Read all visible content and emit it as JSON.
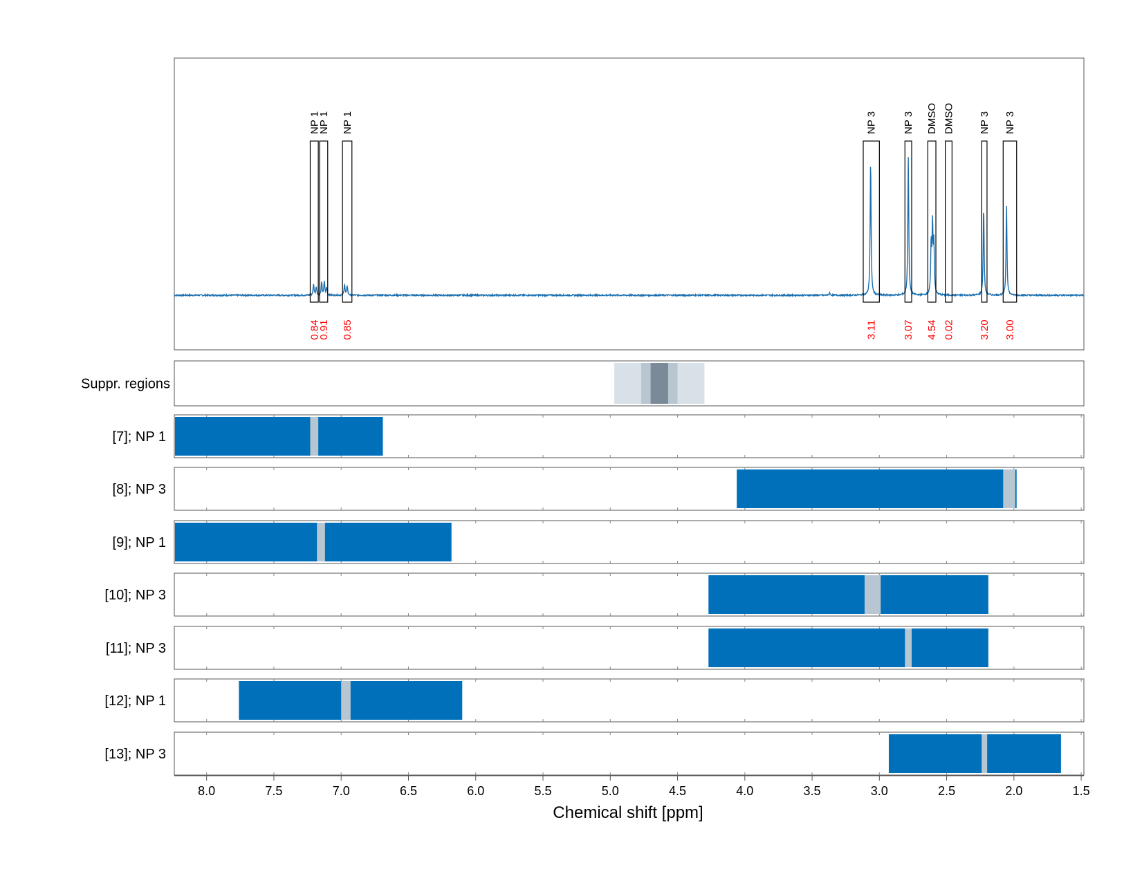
{
  "chart_data": {
    "type": "nmr-spectrum-with-region-bars",
    "xlabel": "Chemical shift [ppm]",
    "x_axis": {
      "reversed": true,
      "xlim": [
        8.24,
        1.48
      ],
      "ticks": [
        8.0,
        7.5,
        7.0,
        6.5,
        6.0,
        5.5,
        5.0,
        4.5,
        4.0,
        3.5,
        3.0,
        2.5,
        2.0,
        1.5
      ],
      "tick_labels": [
        "8.0",
        "7.5",
        "7.0",
        "6.5",
        "6.0",
        "5.5",
        "5.0",
        "4.5",
        "4.0",
        "3.5",
        "3.0",
        "2.5",
        "2.0",
        "1.5"
      ]
    },
    "grid": true,
    "colors": {
      "spectrum": "#1a6fb0",
      "bar": "#0070bb",
      "gap": "#b7c6d1",
      "integral_text": "#ff0000",
      "suppr_light": "#d8e1e8",
      "suppr_mid": "#b7c6d1",
      "suppr_dark": "#7a8a99"
    },
    "spectrum": {
      "baseline": 0,
      "ylim": [
        -0.04,
        0.18
      ],
      "peaks": [
        {
          "x": 7.205,
          "height": 0.009
        },
        {
          "x": 7.185,
          "height": 0.007
        },
        {
          "x": 7.145,
          "height": 0.01
        },
        {
          "x": 7.125,
          "height": 0.011
        },
        {
          "x": 7.108,
          "height": 0.006
        },
        {
          "x": 6.975,
          "height": 0.009
        },
        {
          "x": 6.955,
          "height": 0.008
        },
        {
          "x": 3.065,
          "height": 0.11
        },
        {
          "x": 2.785,
          "height": 0.112
        },
        {
          "x": 2.615,
          "height": 0.04
        },
        {
          "x": 2.605,
          "height": 0.055
        },
        {
          "x": 2.595,
          "height": 0.04
        },
        {
          "x": 2.225,
          "height": 0.072
        },
        {
          "x": 2.055,
          "height": 0.073
        },
        {
          "x": 3.37,
          "height": 0.002
        }
      ]
    },
    "peak_regions": [
      {
        "label": "NP 1",
        "integral": "0.84",
        "x_from": 7.23,
        "x_to": 7.17
      },
      {
        "label": "NP 1",
        "integral": "0.91",
        "x_from": 7.16,
        "x_to": 7.1
      },
      {
        "label": "NP 1",
        "integral": "0.85",
        "x_from": 6.99,
        "x_to": 6.92
      },
      {
        "label": "NP 3",
        "integral": "3.11",
        "x_from": 3.12,
        "x_to": 3.0
      },
      {
        "label": "NP 3",
        "integral": "3.07",
        "x_from": 2.81,
        "x_to": 2.76
      },
      {
        "label": "DMSO",
        "integral": "4.54",
        "x_from": 2.64,
        "x_to": 2.58
      },
      {
        "label": "DMSO",
        "integral": "0.02",
        "x_from": 2.51,
        "x_to": 2.46
      },
      {
        "label": "NP 3",
        "integral": "3.20",
        "x_from": 2.24,
        "x_to": 2.2
      },
      {
        "label": "NP 3",
        "integral": "3.00",
        "x_from": 2.08,
        "x_to": 1.98
      }
    ],
    "suppression_track": {
      "label": "Suppr. regions",
      "bands": [
        {
          "x_from": 4.97,
          "x_to": 4.3,
          "shade": "light"
        },
        {
          "x_from": 4.77,
          "x_to": 4.5,
          "shade": "mid"
        },
        {
          "x_from": 4.7,
          "x_to": 4.57,
          "shade": "dark"
        }
      ]
    },
    "tracks": [
      {
        "label": "[7]; NP 1",
        "bar_from": 8.24,
        "bar_to": 6.69,
        "gap_from": 7.23,
        "gap_to": 7.17
      },
      {
        "label": "[8]; NP 3",
        "bar_from": 4.06,
        "bar_to": 1.98,
        "gap_from": 2.08,
        "gap_to": 1.99
      },
      {
        "label": "[9]; NP 1",
        "bar_from": 8.24,
        "bar_to": 6.18,
        "gap_from": 7.18,
        "gap_to": 7.12
      },
      {
        "label": "[10]; NP 3",
        "bar_from": 4.27,
        "bar_to": 2.19,
        "gap_from": 3.11,
        "gap_to": 2.99
      },
      {
        "label": "[11]; NP 3",
        "bar_from": 4.27,
        "bar_to": 2.19,
        "gap_from": 2.81,
        "gap_to": 2.76
      },
      {
        "label": "[12]; NP 1",
        "bar_from": 7.76,
        "bar_to": 6.1,
        "gap_from": 7.0,
        "gap_to": 6.93
      },
      {
        "label": "[13]; NP 3",
        "bar_from": 2.93,
        "bar_to": 1.65,
        "gap_from": 2.24,
        "gap_to": 2.2
      }
    ]
  }
}
